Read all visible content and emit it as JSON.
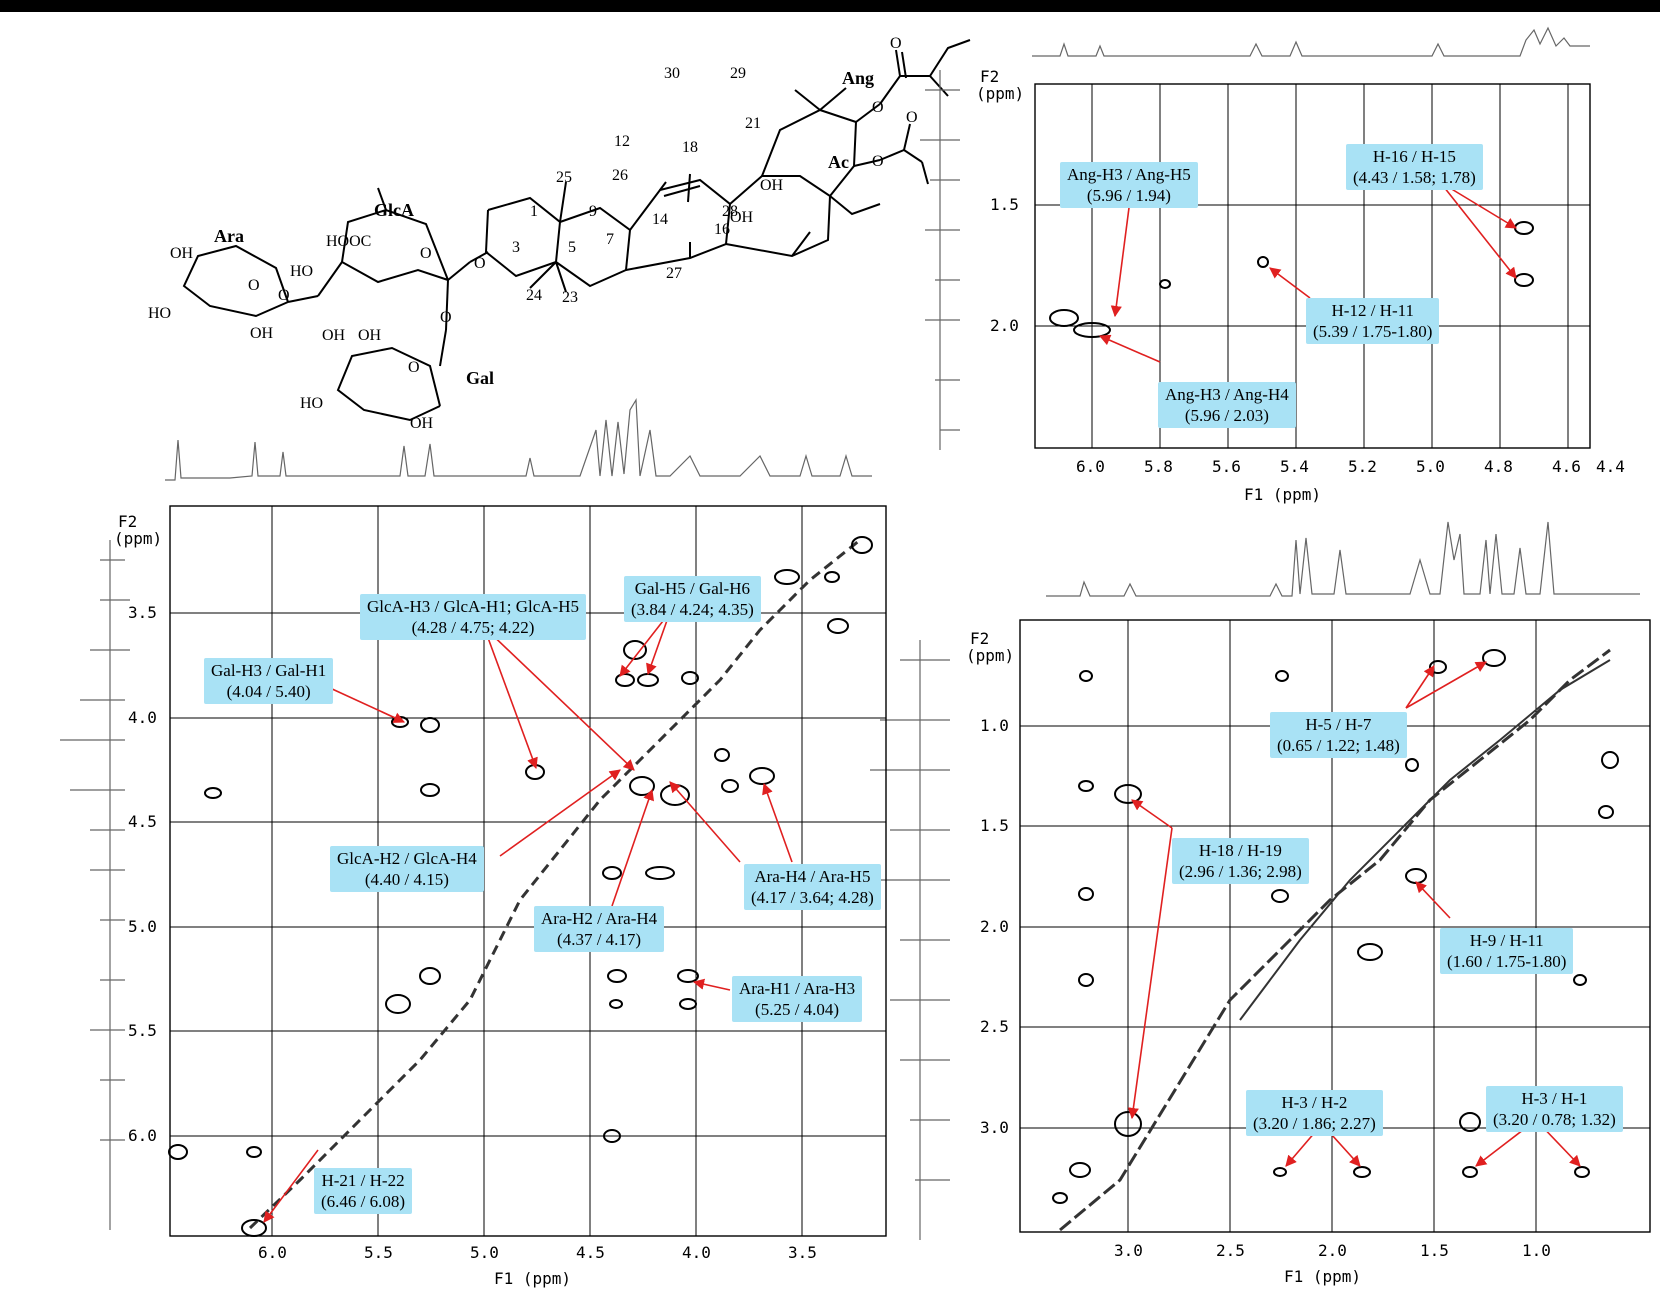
{
  "structure": {
    "labels": {
      "ara": "Ara",
      "glca": "GlcA",
      "gal": "Gal",
      "ang": "Ang",
      "ac": "Ac",
      "n30": "30",
      "n29": "29",
      "n21": "21",
      "n12": "12",
      "n18": "18",
      "n25": "25",
      "n26": "26",
      "n1": "1",
      "n9": "9",
      "n14": "14",
      "n16": "16",
      "n28": "28",
      "n3": "3",
      "n5": "5",
      "n7": "7",
      "n24": "24",
      "n23": "23",
      "n27": "27",
      "hooc": "HOOC",
      "ho1": "HO",
      "ho2": "HO",
      "ho3": "HO",
      "oh1": "OH",
      "oh2": "OH",
      "oh3": "OH",
      "oh4": "OH",
      "oh5": "OH",
      "oh6": "OH",
      "oh7": "OH",
      "ho4": "HO"
    }
  },
  "panels": {
    "top_right": {
      "f2_label": "F2",
      "ppm_label": "(ppm)",
      "f1_label": "F1 (ppm)",
      "y_ticks": [
        "1.5",
        "2.0"
      ],
      "x_ticks": [
        "6.0",
        "5.8",
        "5.6",
        "5.4",
        "5.2",
        "5.0",
        "4.8",
        "4.6",
        "4.4"
      ],
      "callouts": {
        "ang_h3_h5": {
          "l1": "Ang-H3 / Ang-H5",
          "l2": "(5.96 / 1.94)"
        },
        "h16_h15": {
          "l1": "H-16 / H-15",
          "l2": "(4.43 / 1.58; 1.78)"
        },
        "h12_h11": {
          "l1": "H-12 / H-11",
          "l2": "(5.39 / 1.75-1.80)"
        },
        "ang_h3_h4": {
          "l1": "Ang-H3 / Ang-H4",
          "l2": "(5.96 / 2.03)"
        }
      }
    },
    "bottom_left": {
      "f2_label": "F2",
      "ppm_label": "(ppm)",
      "f1_label": "F1 (ppm)",
      "y_ticks": [
        "3.5",
        "4.0",
        "4.5",
        "5.0",
        "5.5",
        "6.0"
      ],
      "x_ticks": [
        "6.0",
        "5.5",
        "5.0",
        "4.5",
        "4.0",
        "3.5"
      ],
      "callouts": {
        "glca_h3": {
          "l1": "GlcA-H3 / GlcA-H1; GlcA-H5",
          "l2": "(4.28 / 4.75; 4.22)"
        },
        "gal_h5": {
          "l1": "Gal-H5 / Gal-H6",
          "l2": "(3.84 / 4.24; 4.35)"
        },
        "gal_h3": {
          "l1": "Gal-H3 / Gal-H1",
          "l2": "(4.04 / 5.40)"
        },
        "glca_h2": {
          "l1": "GlcA-H2 / GlcA-H4",
          "l2": "(4.40 / 4.15)"
        },
        "ara_h2": {
          "l1": "Ara-H2 / Ara-H4",
          "l2": "(4.37 / 4.17)"
        },
        "ara_h4": {
          "l1": "Ara-H4 / Ara-H5",
          "l2": "(4.17 / 3.64; 4.28)"
        },
        "ara_h1": {
          "l1": "Ara-H1 / Ara-H3",
          "l2": "(5.25 / 4.04)"
        },
        "h21": {
          "l1": "H-21 / H-22",
          "l2": "(6.46 / 6.08)"
        }
      }
    },
    "bottom_right": {
      "f2_label": "F2",
      "ppm_label": "(ppm)",
      "f1_label": "F1 (ppm)",
      "y_ticks": [
        "1.0",
        "1.5",
        "2.0",
        "2.5",
        "3.0"
      ],
      "x_ticks": [
        "3.0",
        "2.5",
        "2.0",
        "1.5",
        "1.0"
      ],
      "callouts": {
        "h5_h7": {
          "l1": "H-5 / H-7",
          "l2": "(0.65 / 1.22; 1.48)"
        },
        "h18_h19": {
          "l1": "H-18 / H-19",
          "l2": "(2.96 / 1.36; 2.98)"
        },
        "h9_h11": {
          "l1": "H-9 / H-11",
          "l2": "(1.60 / 1.75-1.80)"
        },
        "h3_h2": {
          "l1": "H-3 / H-2",
          "l2": "(3.20 / 1.86; 2.27)"
        },
        "h3_h1": {
          "l1": "H-3 / H-1",
          "l2": "(3.20 / 0.78; 1.32)"
        }
      }
    }
  },
  "colors": {
    "callout_bg": "#a9e2f5",
    "arrow": "#e02020",
    "grid": "#000000"
  }
}
